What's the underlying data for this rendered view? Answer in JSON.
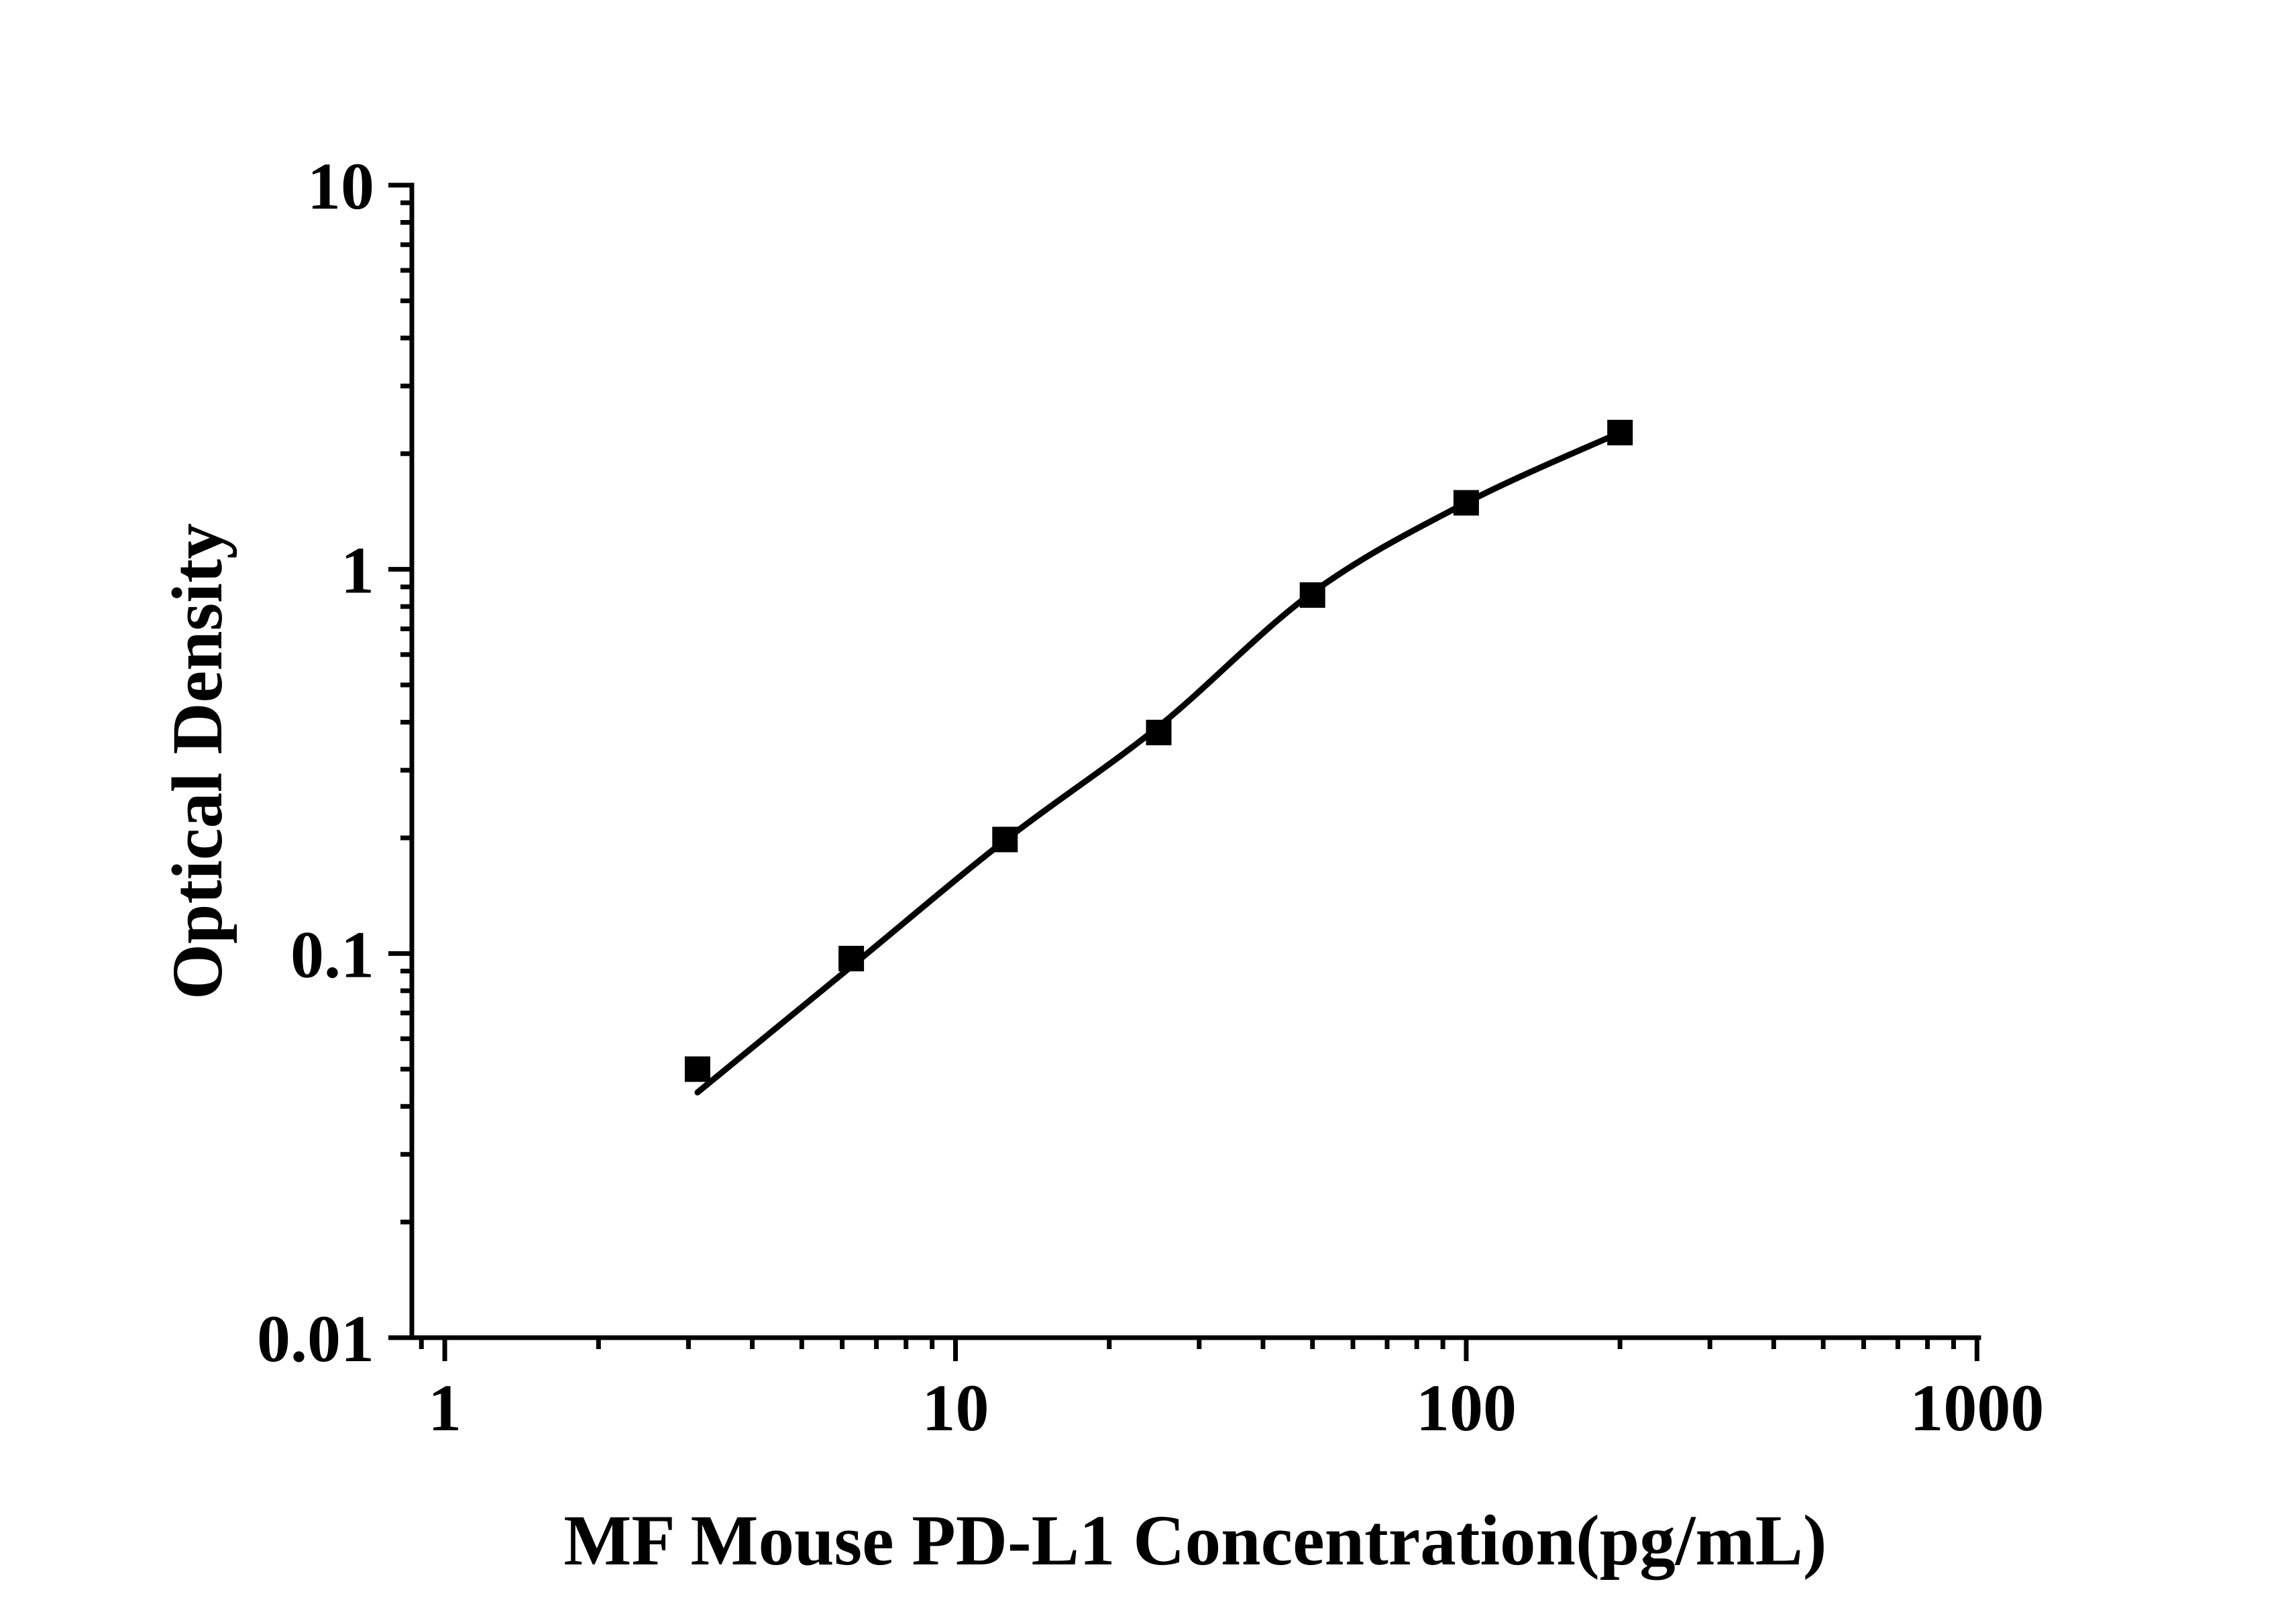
{
  "figure": {
    "background_color": "#ffffff",
    "ink_color": "#000000",
    "description": "ELISA standard curve, log-log axes, black square markers with smooth fit line"
  },
  "chart_data": {
    "type": "scatter",
    "title": "",
    "xlabel": "MF Mouse PD-L1 Concentration(pg/mL)",
    "ylabel": "Optical Density",
    "x_scale": "log",
    "y_scale": "log",
    "xlim": [
      0.862,
      1008
    ],
    "ylim": [
      0.01,
      10
    ],
    "grid": false,
    "legend": null,
    "x_major_ticks": {
      "values": [
        1,
        10,
        100,
        1000
      ],
      "labels": [
        "1",
        "10",
        "100",
        "1000"
      ]
    },
    "y_major_ticks": {
      "values": [
        10,
        1,
        0.1,
        0.01
      ],
      "labels": [
        "10",
        "1",
        "0.1",
        "0.01"
      ]
    },
    "series": [
      {
        "name": "standard-points",
        "kind": "scatter",
        "marker": "filled-square",
        "color": "#000000",
        "x": [
          3.125,
          6.25,
          12.5,
          25,
          50,
          100,
          200
        ],
        "y": [
          0.05,
          0.097,
          0.198,
          0.376,
          0.857,
          1.49,
          2.27
        ]
      },
      {
        "name": "fit-curve",
        "kind": "line",
        "color": "#000000",
        "x": [
          3.125,
          6.25,
          12.5,
          25,
          50,
          100,
          200
        ],
        "y": [
          0.0435,
          0.0925,
          0.197,
          0.39,
          0.87,
          1.49,
          2.27
        ]
      }
    ]
  }
}
